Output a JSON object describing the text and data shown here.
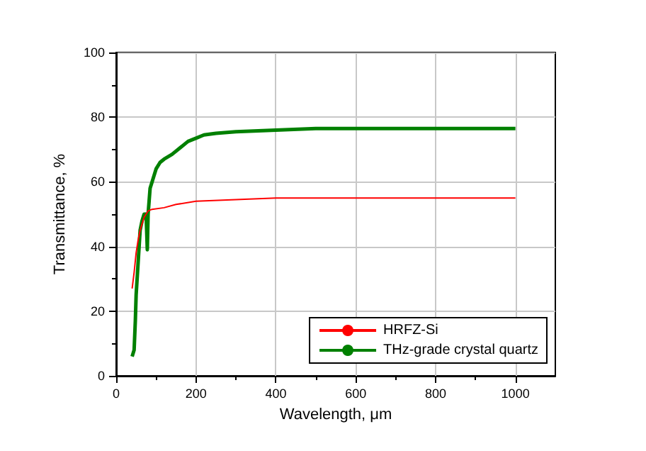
{
  "chart_data": {
    "type": "line",
    "xlabel": "Wavelength, μm",
    "ylabel": "Transmittance, %",
    "xlim": [
      0,
      1100
    ],
    "xticks": [
      0,
      200,
      400,
      600,
      800,
      1000
    ],
    "ylim": [
      0,
      100
    ],
    "yticks": [
      0,
      20,
      40,
      60,
      80,
      100
    ],
    "grid": true,
    "legend": "bottom right",
    "marker": "none",
    "line_style": "solid",
    "series": [
      {
        "name": "HRFZ-Si",
        "color": "#ff0000",
        "x": [
          40,
          45,
          50,
          55,
          60,
          65,
          70,
          75,
          80,
          90,
          120,
          150,
          200,
          300,
          400,
          1000
        ],
        "values": [
          27,
          32,
          38,
          42,
          45,
          47,
          49,
          50,
          51,
          51.5,
          52,
          53,
          54,
          54.5,
          55,
          55
        ]
      },
      {
        "name": "THz-grade crystal quartz",
        "color": "#008000",
        "x": [
          40,
          45,
          48,
          50,
          55,
          60,
          65,
          70,
          75,
          78,
          80,
          85,
          90,
          100,
          110,
          120,
          140,
          160,
          180,
          200,
          220,
          250,
          300,
          400,
          500,
          1000
        ],
        "values": [
          6,
          8,
          17,
          25,
          35,
          45,
          48,
          50,
          50,
          39,
          50,
          58,
          60,
          64,
          66,
          67,
          68.5,
          70.5,
          72.5,
          73.5,
          74.5,
          75,
          75.5,
          76,
          76.5,
          76.5
        ]
      }
    ]
  }
}
